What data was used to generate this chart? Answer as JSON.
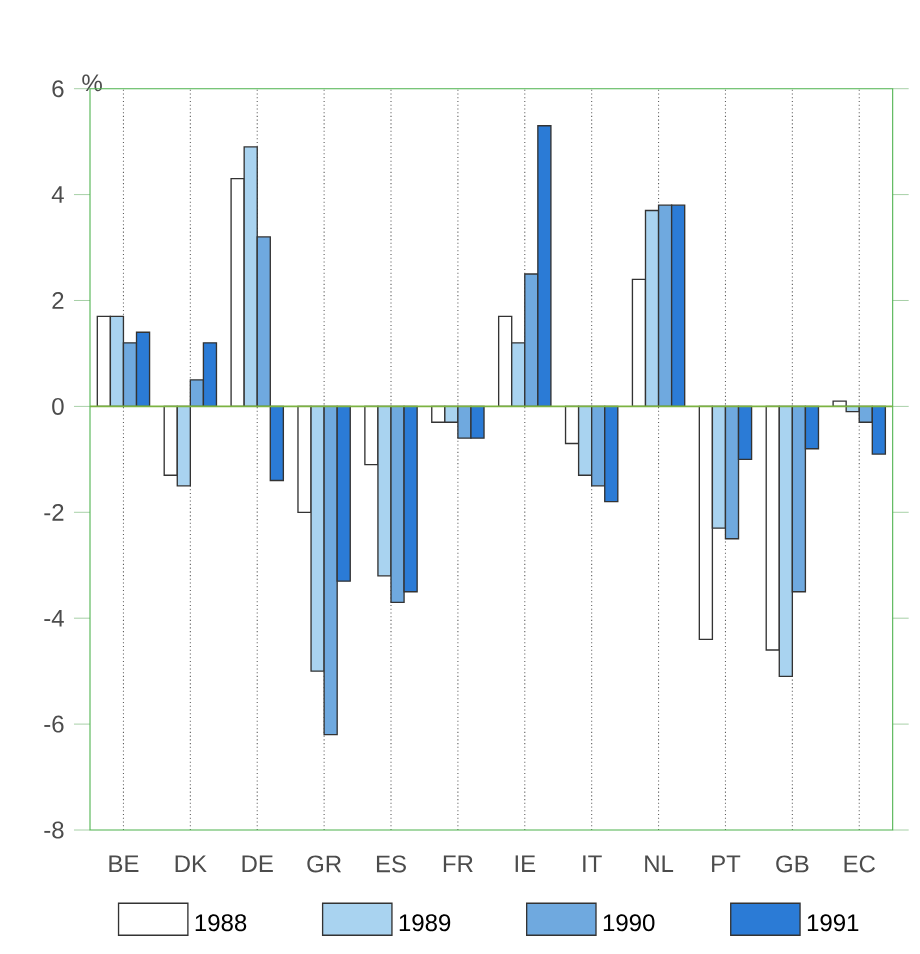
{
  "chart_data": {
    "type": "bar",
    "ylabel": "%",
    "categories": [
      "BE",
      "DK",
      "DE",
      "GR",
      "ES",
      "FR",
      "IE",
      "IT",
      "NL",
      "PT",
      "GB",
      "EC"
    ],
    "series": [
      {
        "name": "1988",
        "color": "#ffffff",
        "values": [
          1.7,
          -1.3,
          4.3,
          -2.0,
          -1.1,
          -0.3,
          1.7,
          -0.7,
          2.4,
          -4.4,
          -4.6,
          0.1
        ]
      },
      {
        "name": "1989",
        "color": "#a9d3f0",
        "values": [
          1.7,
          -1.5,
          4.9,
          -5.0,
          -3.2,
          -0.3,
          1.2,
          -1.3,
          3.7,
          -2.3,
          -5.1,
          -0.1
        ]
      },
      {
        "name": "1990",
        "color": "#6fa9df",
        "values": [
          1.2,
          0.5,
          3.2,
          -6.2,
          -3.7,
          -0.6,
          2.5,
          -1.5,
          3.8,
          -2.5,
          -3.5,
          -0.3
        ]
      },
      {
        "name": "1991",
        "color": "#2b7bd6",
        "values": [
          1.4,
          1.2,
          -1.4,
          -3.3,
          -3.5,
          -0.6,
          5.3,
          -1.8,
          3.8,
          -1.0,
          -0.8,
          -0.9
        ]
      }
    ],
    "ylim": [
      -8,
      6
    ],
    "yticks": [
      -8,
      -6,
      -4,
      -2,
      0,
      2,
      4,
      6
    ],
    "ref_lines": [
      {
        "axis": "y",
        "value": 0,
        "color": "#7cb342"
      }
    ],
    "grid": "x",
    "legend": "bottom"
  }
}
